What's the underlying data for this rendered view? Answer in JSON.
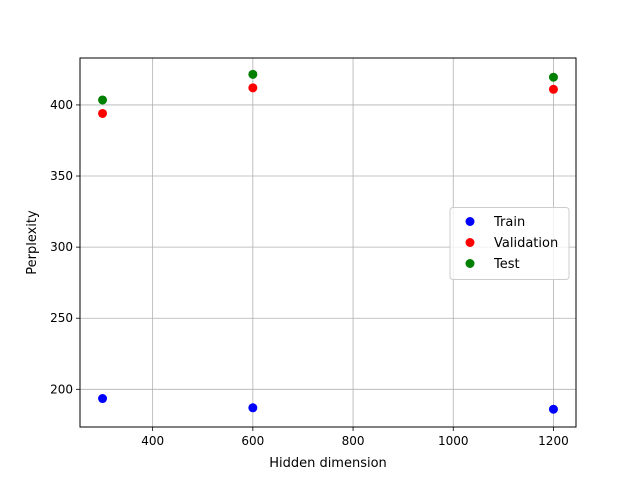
{
  "chart_data": {
    "type": "scatter",
    "title": "",
    "xlabel": "Hidden dimension",
    "ylabel": "Perplexity",
    "xlim": [
      255,
      1245
    ],
    "ylim": [
      173.5,
      433
    ],
    "xticks": [
      400,
      600,
      800,
      1000,
      1200
    ],
    "yticks": [
      200,
      250,
      300,
      350,
      400
    ],
    "grid": true,
    "legend_position": "center-right",
    "series": [
      {
        "name": "Train",
        "color": "#0000ff",
        "x": [
          300,
          600,
          1200
        ],
        "y": [
          193.5,
          187,
          186
        ]
      },
      {
        "name": "Validation",
        "color": "#ff0000",
        "x": [
          300,
          600,
          1200
        ],
        "y": [
          394,
          412,
          411
        ]
      },
      {
        "name": "Test",
        "color": "#008000",
        "x": [
          300,
          600,
          1200
        ],
        "y": [
          403.5,
          421.5,
          419.5
        ]
      }
    ]
  }
}
